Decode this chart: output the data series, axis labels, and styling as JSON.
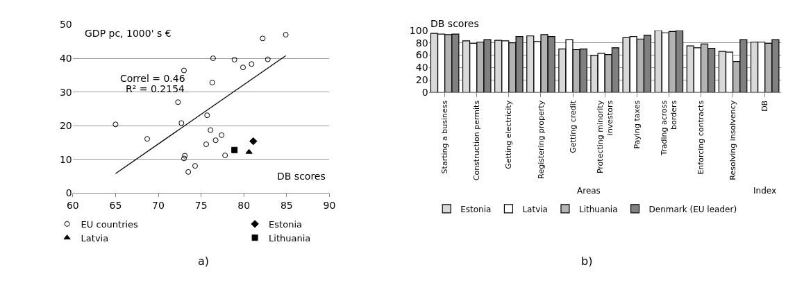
{
  "chart_data": [
    {
      "type": "scatter",
      "xlabel": "DB scores",
      "ylabel": "GDP pc, 1000' s €",
      "xlim": [
        60,
        90
      ],
      "xticks": [
        60,
        65,
        70,
        75,
        80,
        85,
        90
      ],
      "ylim": [
        0,
        50
      ],
      "yticks": [
        0,
        10,
        20,
        30,
        40,
        50
      ],
      "grid": "y",
      "legend": "bottom",
      "annotations": [
        "Correl = 0.46",
        "R² = 0.2154",
        "a)"
      ],
      "series": [
        {
          "name": "EU countries",
          "color": "#000000",
          "marker": "circle",
          "x": [
            65,
            68.7,
            72.3,
            72.7,
            73.0,
            73.1,
            73.0,
            73.5,
            74.3,
            75.6,
            75.7,
            76.1,
            76.3,
            76.4,
            76.7,
            77.4,
            77.8,
            78.9,
            79.9,
            80.9,
            82.2,
            82.8,
            84.9
          ],
          "values": [
            20.4,
            16.1,
            27.0,
            20.8,
            36.4,
            11.1,
            10.3,
            6.3,
            8.1,
            14.5,
            23.1,
            18.7,
            32.8,
            40.0,
            15.7,
            17.2,
            11.2,
            39.6,
            37.3,
            38.3,
            45.9,
            39.7,
            47.0
          ]
        },
        {
          "name": "Estonia",
          "color": "#000000",
          "marker": "diamond",
          "x": [
            81.1
          ],
          "values": [
            15.4
          ]
        },
        {
          "name": "Latvia",
          "color": "#000000",
          "marker": "triangle",
          "x": [
            80.6
          ],
          "values": [
            12.2
          ]
        },
        {
          "name": "Lithuania",
          "color": "#000000",
          "marker": "square",
          "x": [
            78.9
          ],
          "values": [
            12.8
          ]
        },
        {
          "type": "line",
          "color": "#000000",
          "marker": "none",
          "x": [
            65,
            84.9
          ],
          "values": [
            5.8,
            40.8
          ]
        }
      ]
    },
    {
      "type": "bar",
      "ylabel": "DB scores",
      "ylim": [
        0,
        100
      ],
      "yticks": [
        0,
        20,
        40,
        60,
        80,
        100
      ],
      "grid": "y",
      "legend": "bottom",
      "categories": [
        "Starting a business",
        "Construction permits",
        "Getting electricity",
        "Registering property",
        "Getting credit",
        "Protecting minority\ninvestors",
        "Paying taxes",
        "Trading across\nborders",
        "Enforcing contracts",
        "Resolving insolvency",
        "DB"
      ],
      "annotations": [
        "Areas",
        "Index",
        "b)"
      ],
      "series": [
        {
          "name": "Estonia",
          "color": "#d9d9d9",
          "values": [
            95,
            83,
            84,
            91,
            70,
            60,
            88,
            100,
            75,
            66,
            81
          ]
        },
        {
          "name": "Latvia",
          "color": "#ffffff",
          "values": [
            94,
            79,
            83,
            82,
            85,
            63,
            90,
            96,
            72,
            65,
            81
          ]
        },
        {
          "name": "Lithuania",
          "color": "#b3b3b3",
          "values": [
            93,
            81,
            80,
            93,
            69,
            61,
            86,
            98,
            78,
            50,
            79
          ]
        },
        {
          "name": "Denmark (EU leader)",
          "color": "#808080",
          "values": [
            94,
            85,
            90,
            90,
            70,
            72,
            92,
            100,
            71,
            85,
            85
          ]
        }
      ]
    }
  ]
}
